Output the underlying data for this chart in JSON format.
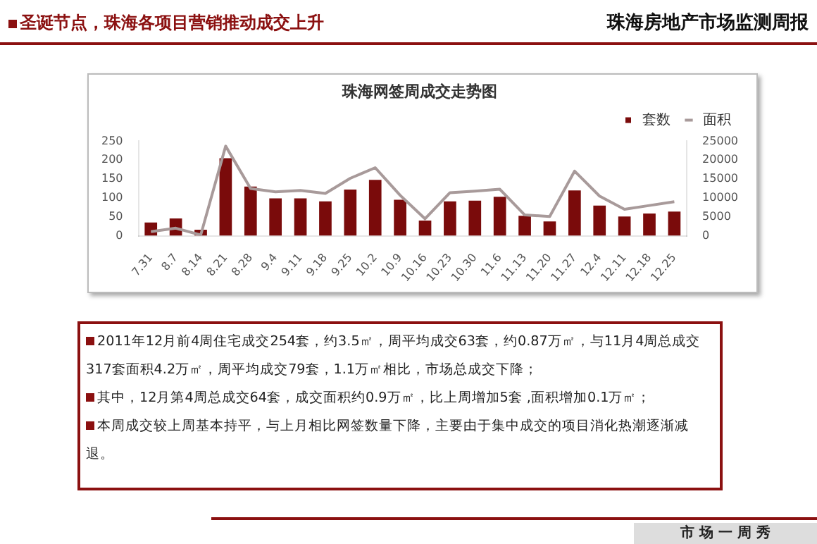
{
  "chart_data": {
    "type": "bar",
    "title": "珠海网签周成交走势图",
    "categories": [
      "7.31",
      "8.7",
      "8.14",
      "8.21",
      "8.28",
      "9.4",
      "9.11",
      "9.18",
      "9.25",
      "10.2",
      "10.9",
      "10.16",
      "10.23",
      "10.30",
      "11.6",
      "11.13",
      "11.20",
      "11.27",
      "12.4",
      "12.11",
      "12.18",
      "12.25"
    ],
    "series": [
      {
        "name": "套数",
        "color": "#7a0b0b",
        "values": [
          35,
          46,
          16,
          205,
          130,
          99,
          99,
          91,
          122,
          148,
          95,
          40,
          91,
          93,
          103,
          53,
          38,
          120,
          80,
          51,
          59,
          64
        ]
      },
      {
        "name": "面积",
        "type": "line",
        "axis": "y2",
        "color": "#a89a9a",
        "values": [
          1100,
          2000,
          200,
          23700,
          12500,
          11600,
          12000,
          11200,
          15200,
          18000,
          10700,
          4500,
          11400,
          11800,
          12300,
          5500,
          5100,
          17100,
          10500,
          7000,
          8000,
          9000
        ]
      }
    ],
    "ylim": [
      0,
      250
    ],
    "yticks": [
      0,
      50,
      100,
      150,
      200,
      250
    ],
    "y2lim": [
      0,
      25000
    ],
    "y2ticks": [
      0,
      5000,
      10000,
      15000,
      20000,
      25000
    ],
    "grid": false,
    "legend": "top right",
    "marker": "none",
    "annotations": [
      "圣诞节点，珠海各项目营销推动成交上升",
      "珠海房地产市场监测周报",
      "2011年12月前4周住宅成交254套，约3.5㎡，周平均成交63套，约0.87万㎡，与11月4周总成交317套面积4.2万㎡，周平均成交79套，1.1万㎡相比，市场总成交下降；",
      "其中，12月第4周总成交64套，成交面积约0.9万㎡，比上周增加5套 ,面积增加0.1万㎡；",
      "本周成交较上周基本持平，与上月相比网签数量下降，主要由于集中成交的项目消化热潮逐渐减退。",
      "市 场 一 周 秀"
    ]
  }
}
